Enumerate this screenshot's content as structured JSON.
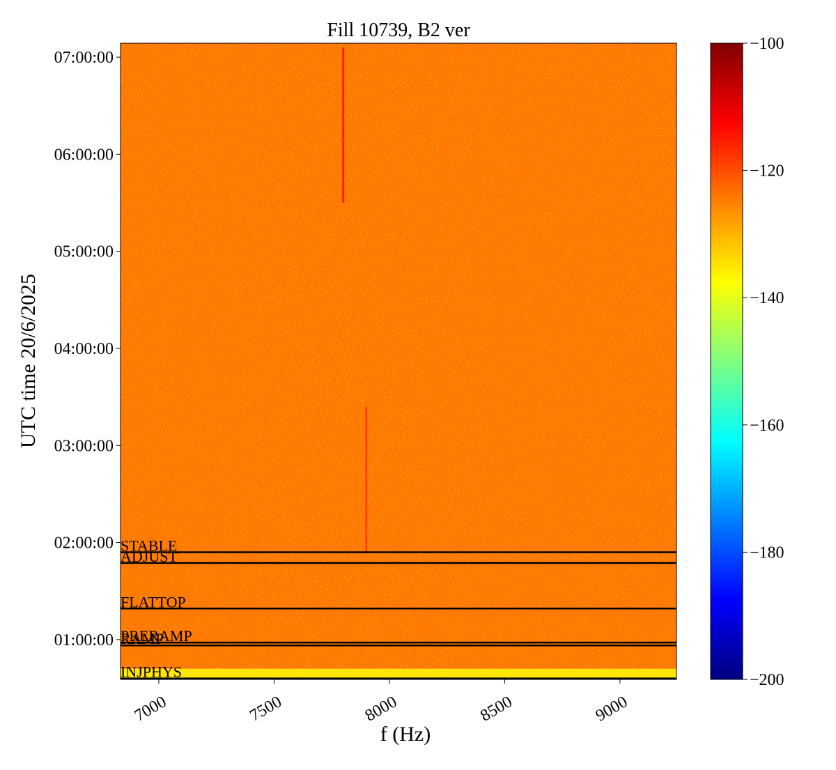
{
  "chart_data": {
    "type": "spectrogram",
    "title": "Fill 10739, B2 ver",
    "x_label": "f (Hz)",
    "y_label": "UTC time 20/6/2025",
    "xlim": [
      6834,
      9245
    ],
    "xticks": [
      7000,
      7500,
      8000,
      8500,
      9000
    ],
    "ylim": [
      0.59,
      7.144
    ],
    "yticks": [
      {
        "value": 1,
        "label": "01:00:00"
      },
      {
        "value": 2,
        "label": "02:00:00"
      },
      {
        "value": 3,
        "label": "03:00:00"
      },
      {
        "value": 4,
        "label": "04:00:00"
      },
      {
        "value": 5,
        "label": "05:00:00"
      },
      {
        "value": 6,
        "label": "06:00:00"
      },
      {
        "value": 7,
        "label": "07:00:00"
      }
    ],
    "colormap": "jet",
    "clim": [
      -200,
      -100
    ],
    "cticks": [
      {
        "value": -200,
        "label": "−200"
      },
      {
        "value": -180,
        "label": "−180"
      },
      {
        "value": -160,
        "label": "−160"
      },
      {
        "value": -140,
        "label": "−140"
      },
      {
        "value": -120,
        "label": "−120"
      },
      {
        "value": -100,
        "label": "−100"
      }
    ],
    "regions": [
      {
        "y": [
          0.59,
          0.7
        ],
        "value": -135
      },
      {
        "y": [
          0.7,
          7.144
        ],
        "value": -124
      }
    ],
    "features": [
      {
        "x": 7800,
        "y": [
          5.5,
          7.1
        ],
        "value": -112
      },
      {
        "x": 7900,
        "y": [
          1.9,
          3.4
        ],
        "value": -117
      }
    ],
    "phases": [
      {
        "label": "STABLE",
        "value": 1.9
      },
      {
        "label": "ADJUST",
        "value": 1.79
      },
      {
        "label": "FLATTOP",
        "value": 1.32
      },
      {
        "label": "PRERAMP",
        "value": 0.97
      },
      {
        "label": "RAMP",
        "value": 0.94
      },
      {
        "label": "INJPHYS",
        "value": 0.6
      }
    ],
    "phase_line_color": "#000000"
  }
}
